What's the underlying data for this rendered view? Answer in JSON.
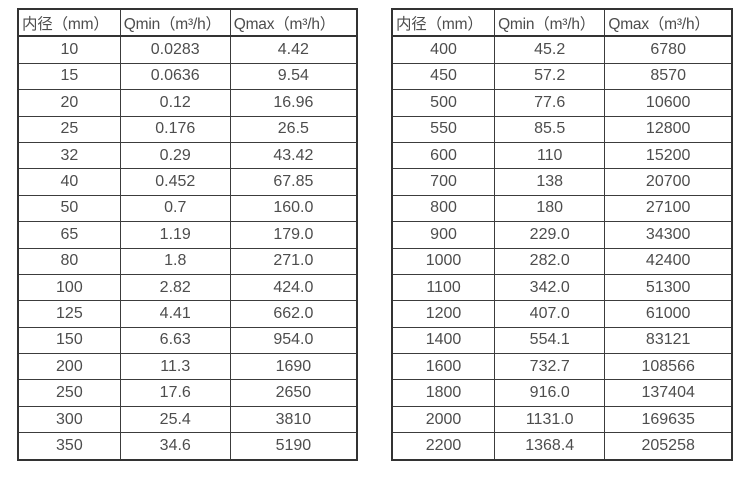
{
  "colors": {
    "background": "#ffffff",
    "border": "#333333",
    "text": "#4d4d4d"
  },
  "tables": [
    {
      "name": "flow-spec-table-small-diameters",
      "headers": [
        "内径（mm）",
        "Qmin（m³/h）",
        "Qmax（m³/h）"
      ],
      "rows": [
        [
          "10",
          "0.0283",
          "4.42"
        ],
        [
          "15",
          "0.0636",
          "9.54"
        ],
        [
          "20",
          "0.12",
          "16.96"
        ],
        [
          "25",
          "0.176",
          "26.5"
        ],
        [
          "32",
          "0.29",
          "43.42"
        ],
        [
          "40",
          "0.452",
          "67.85"
        ],
        [
          "50",
          "0.7",
          "160.0"
        ],
        [
          "65",
          "1.19",
          "179.0"
        ],
        [
          "80",
          "1.8",
          "271.0"
        ],
        [
          "100",
          "2.82",
          "424.0"
        ],
        [
          "125",
          "4.41",
          "662.0"
        ],
        [
          "150",
          "6.63",
          "954.0"
        ],
        [
          "200",
          "11.3",
          "1690"
        ],
        [
          "250",
          "17.6",
          "2650"
        ],
        [
          "300",
          "25.4",
          "3810"
        ],
        [
          "350",
          "34.6",
          "5190"
        ]
      ]
    },
    {
      "name": "flow-spec-table-large-diameters",
      "headers": [
        "内径（mm）",
        "Qmin（m³/h）",
        "Qmax（m³/h）"
      ],
      "rows": [
        [
          "400",
          "45.2",
          "6780"
        ],
        [
          "450",
          "57.2",
          "8570"
        ],
        [
          "500",
          "77.6",
          "10600"
        ],
        [
          "550",
          "85.5",
          "12800"
        ],
        [
          "600",
          "110",
          "15200"
        ],
        [
          "700",
          "138",
          "20700"
        ],
        [
          "800",
          "180",
          "27100"
        ],
        [
          "900",
          "229.0",
          "34300"
        ],
        [
          "1000",
          "282.0",
          "42400"
        ],
        [
          "1100",
          "342.0",
          "51300"
        ],
        [
          "1200",
          "407.0",
          "61000"
        ],
        [
          "1400",
          "554.1",
          "83121"
        ],
        [
          "1600",
          "732.7",
          "108566"
        ],
        [
          "1800",
          "916.0",
          "137404"
        ],
        [
          "2000",
          "1131.0",
          "169635"
        ],
        [
          "2200",
          "1368.4",
          "205258"
        ]
      ]
    }
  ]
}
